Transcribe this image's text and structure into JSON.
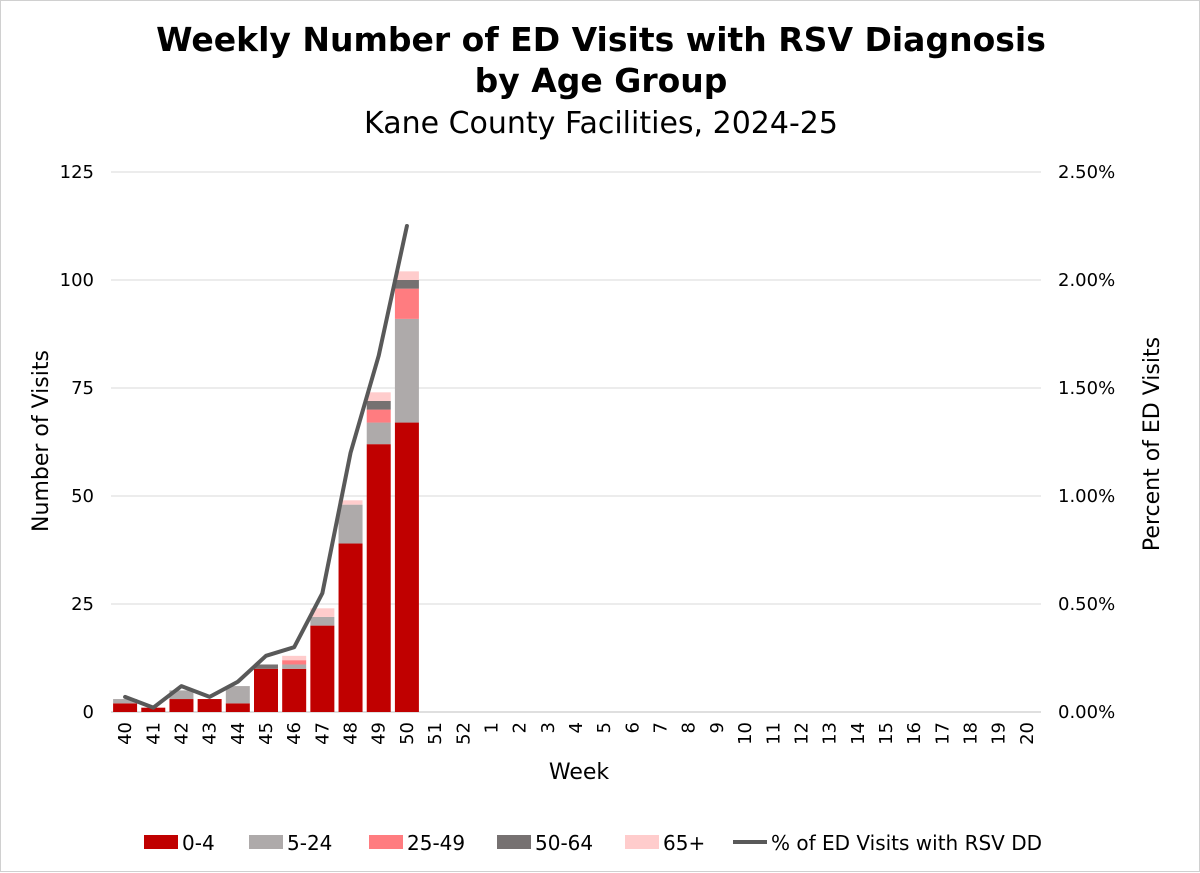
{
  "chart_data": {
    "type": "bar",
    "stacked": true,
    "title": "Weekly Number of ED Visits with RSV Diagnosis by Age Group",
    "title_lines": [
      "Weekly Number of ED Visits with RSV Diagnosis",
      "by Age Group"
    ],
    "subtitle": "Kane County Facilities, 2024-25",
    "xlabel": "Week",
    "ylabel": "Number of Visits",
    "y2label": "Percent of ED Visits",
    "ylim": [
      0,
      125
    ],
    "yticks": [
      "0",
      "25",
      "50",
      "75",
      "100",
      "125"
    ],
    "y2lim": [
      0,
      2.5
    ],
    "y2ticks": [
      "0.00%",
      "0.50%",
      "1.00%",
      "1.50%",
      "2.00%",
      "2.50%"
    ],
    "grid": true,
    "legend_position": "bottom",
    "categories": [
      "40",
      "41",
      "42",
      "43",
      "44",
      "45",
      "46",
      "47",
      "48",
      "49",
      "50",
      "51",
      "52",
      "1",
      "2",
      "3",
      "4",
      "5",
      "6",
      "7",
      "8",
      "9",
      "10",
      "11",
      "12",
      "13",
      "14",
      "15",
      "16",
      "17",
      "18",
      "19",
      "20"
    ],
    "series": [
      {
        "name": "0-4",
        "color": "#c00000",
        "values": [
          2,
          1,
          3,
          3,
          2,
          10,
          10,
          20,
          39,
          62,
          67,
          null,
          null,
          null,
          null,
          null,
          null,
          null,
          null,
          null,
          null,
          null,
          null,
          null,
          null,
          null,
          null,
          null,
          null,
          null,
          null,
          null,
          null
        ]
      },
      {
        "name": "5-24",
        "color": "#aeaaaa",
        "values": [
          1,
          0,
          2,
          0,
          4,
          0,
          1,
          2,
          9,
          5,
          24,
          null,
          null,
          null,
          null,
          null,
          null,
          null,
          null,
          null,
          null,
          null,
          null,
          null,
          null,
          null,
          null,
          null,
          null,
          null,
          null,
          null,
          null
        ]
      },
      {
        "name": "25-49",
        "color": "#ff7c80",
        "values": [
          0,
          0,
          0,
          0,
          0,
          0,
          1,
          0,
          0,
          3,
          7,
          null,
          null,
          null,
          null,
          null,
          null,
          null,
          null,
          null,
          null,
          null,
          null,
          null,
          null,
          null,
          null,
          null,
          null,
          null,
          null,
          null,
          null
        ]
      },
      {
        "name": "50-64",
        "color": "#767171",
        "values": [
          0,
          0,
          0,
          0,
          0,
          1,
          0,
          0,
          0,
          2,
          2,
          null,
          null,
          null,
          null,
          null,
          null,
          null,
          null,
          null,
          null,
          null,
          null,
          null,
          null,
          null,
          null,
          null,
          null,
          null,
          null,
          null,
          null
        ]
      },
      {
        "name": "65+",
        "color": "#ffcccc",
        "values": [
          0,
          0,
          0,
          0,
          0,
          0,
          1,
          2,
          1,
          2,
          2,
          null,
          null,
          null,
          null,
          null,
          null,
          null,
          null,
          null,
          null,
          null,
          null,
          null,
          null,
          null,
          null,
          null,
          null,
          null,
          null,
          null,
          null
        ]
      }
    ],
    "line_series": {
      "name": "% of ED Visits with RSV DD",
      "axis": "right",
      "color": "#595959",
      "values": [
        0.07,
        0.02,
        0.12,
        0.07,
        0.14,
        0.26,
        0.3,
        0.55,
        1.2,
        1.65,
        2.25,
        null,
        null,
        null,
        null,
        null,
        null,
        null,
        null,
        null,
        null,
        null,
        null,
        null,
        null,
        null,
        null,
        null,
        null,
        null,
        null,
        null,
        null
      ]
    }
  }
}
